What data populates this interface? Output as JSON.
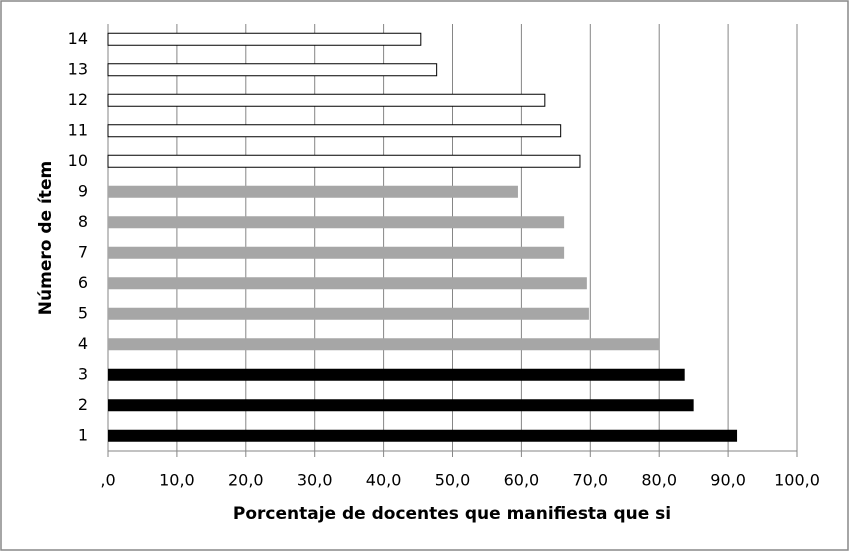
{
  "chart_data": {
    "type": "bar",
    "orientation": "horizontal",
    "xlabel": "Porcentaje de docentes que manifiesta que si",
    "ylabel": "Número de ítem",
    "categories": [
      "1",
      "2",
      "3",
      "4",
      "5",
      "6",
      "7",
      "8",
      "9",
      "10",
      "11",
      "12",
      "13",
      "14"
    ],
    "values": [
      91.3,
      85.0,
      83.7,
      80.0,
      69.8,
      69.5,
      66.2,
      66.2,
      59.5,
      68.5,
      65.7,
      63.4,
      47.7,
      45.4
    ],
    "colors": [
      "#000000",
      "#000000",
      "#000000",
      "#a6a6a6",
      "#a6a6a6",
      "#a6a6a6",
      "#a6a6a6",
      "#a6a6a6",
      "#a6a6a6",
      "#ffffff",
      "#ffffff",
      "#ffffff",
      "#ffffff",
      "#ffffff"
    ],
    "xlim": [
      0,
      100
    ],
    "xticks": [
      {
        "value": 0,
        "label": ",0"
      },
      {
        "value": 10,
        "label": "10,0"
      },
      {
        "value": 20,
        "label": "20,0"
      },
      {
        "value": 30,
        "label": "30,0"
      },
      {
        "value": 40,
        "label": "40,0"
      },
      {
        "value": 50,
        "label": "50,0"
      },
      {
        "value": 60,
        "label": "60,0"
      },
      {
        "value": 70,
        "label": "70,0"
      },
      {
        "value": 80,
        "label": "80,0"
      },
      {
        "value": 90,
        "label": "90,0"
      },
      {
        "value": 100,
        "label": "100,0"
      }
    ],
    "grid": true
  }
}
